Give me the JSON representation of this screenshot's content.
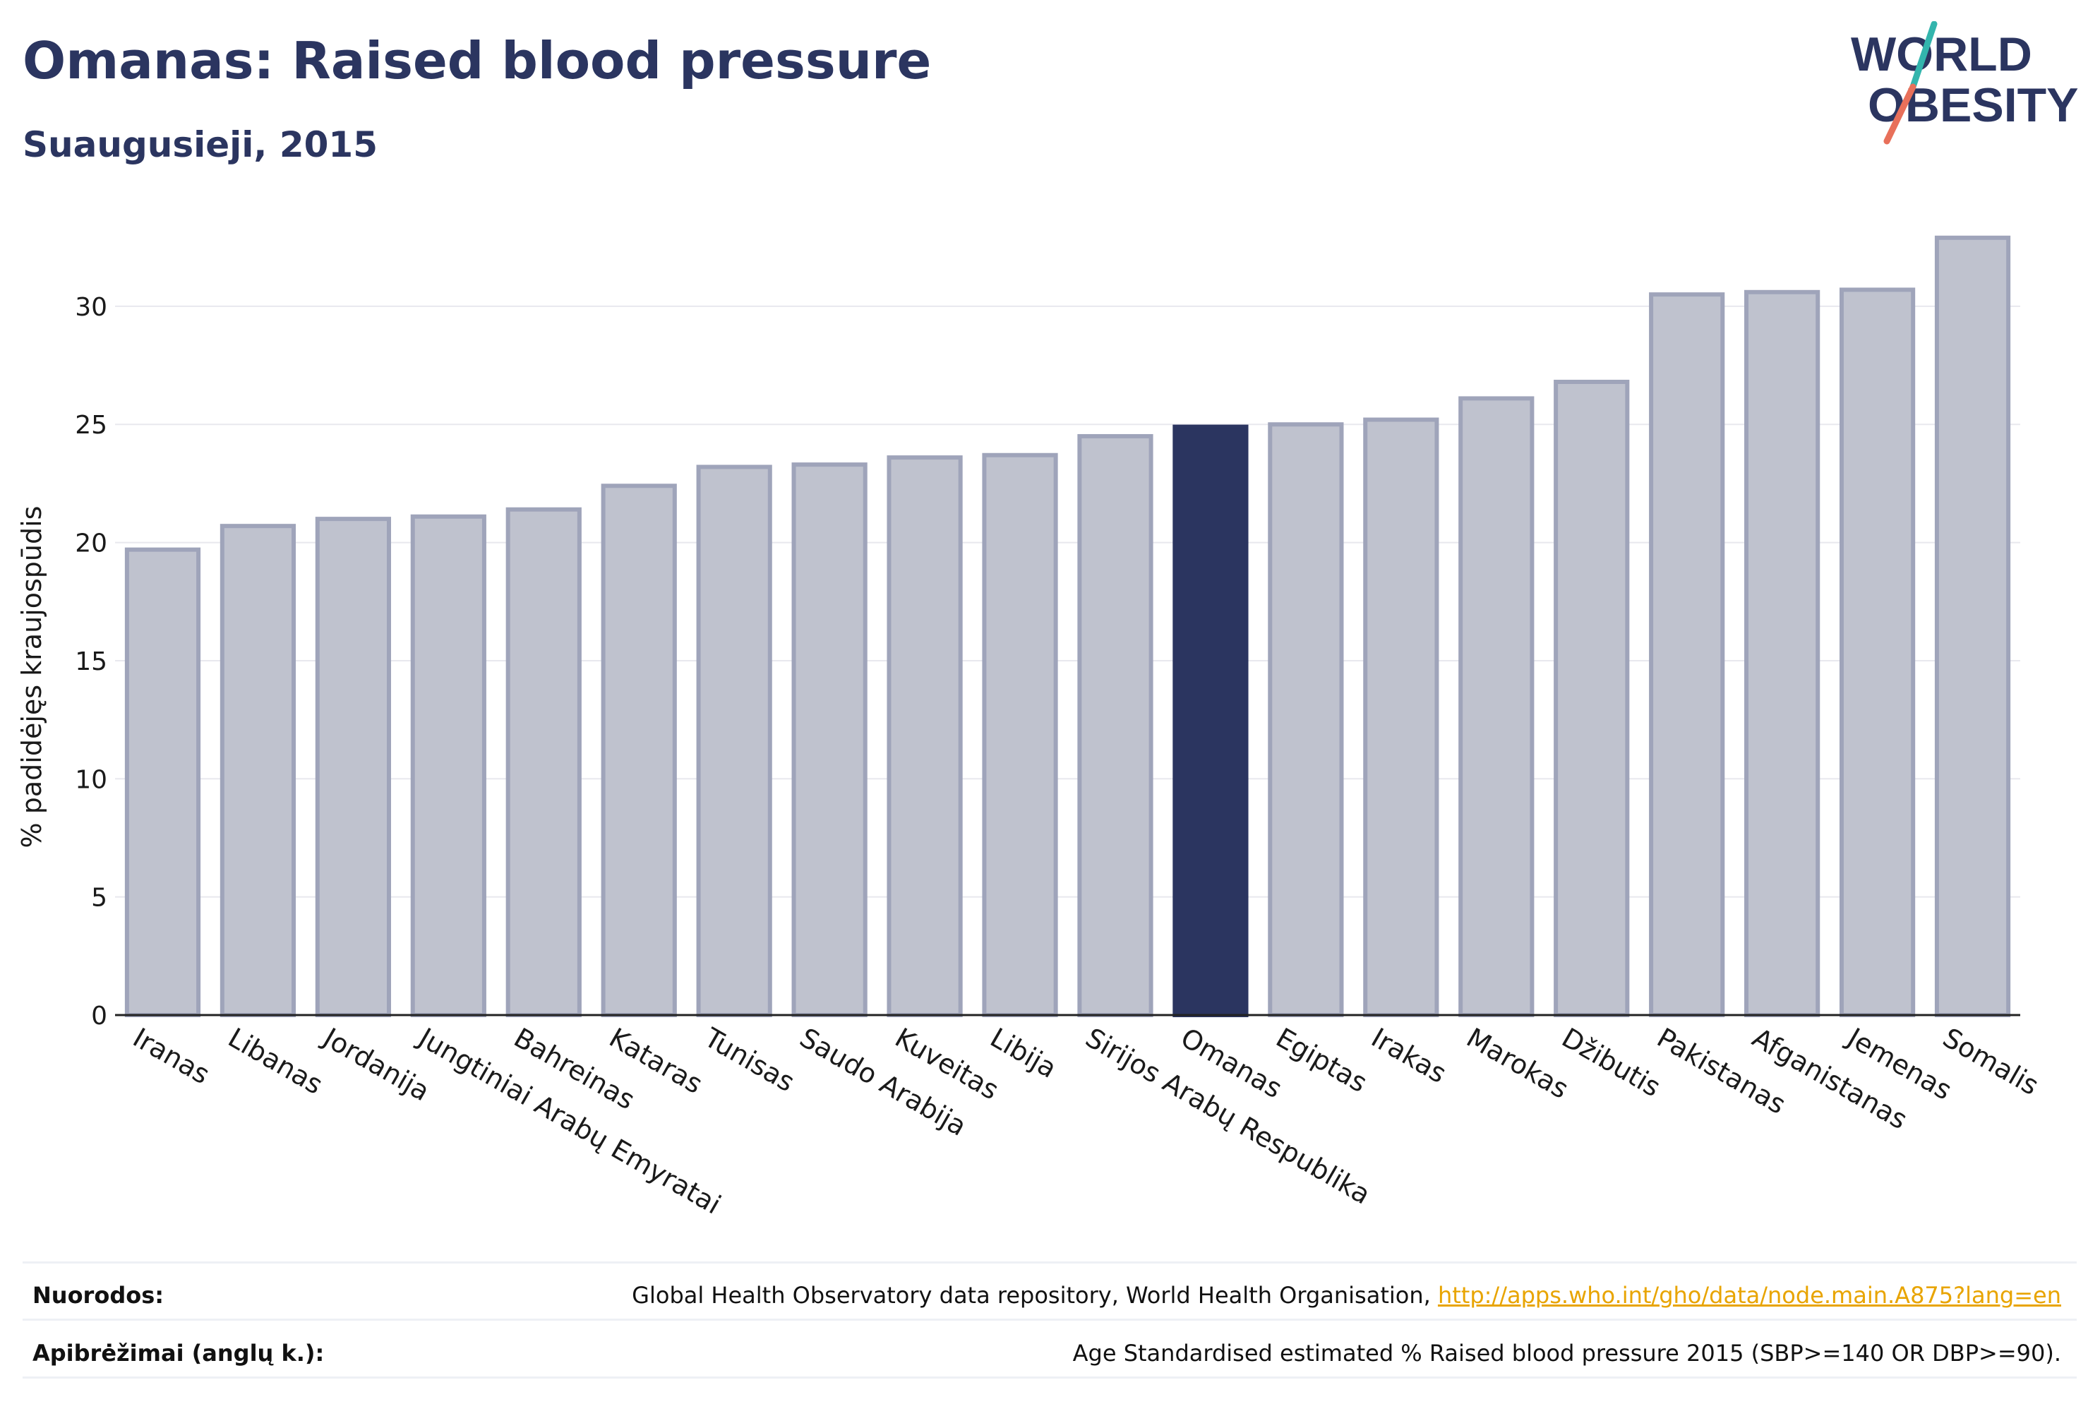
{
  "header": {
    "title": "Omanas: Raised blood pressure",
    "subtitle": "Suaugusieji, 2015"
  },
  "logo": {
    "line1": "WORLD",
    "line2": "OBESITY"
  },
  "colors": {
    "highlight": "#2b3560",
    "bar_fill": "#bfc2ce",
    "bar_stroke": "#9fa4ba",
    "grid": "#e8e8ee",
    "title": "#2b3560",
    "link": "#e8a400"
  },
  "chart_data": {
    "type": "bar",
    "ylabel": "% padidėjęs kraujospūdis",
    "xlabel": "",
    "ylim": [
      0,
      34
    ],
    "yticks": [
      0,
      5,
      10,
      15,
      20,
      25,
      30
    ],
    "grid": true,
    "highlight": "Omanas",
    "categories": [
      "Iranas",
      "Libanas",
      "Jordanija",
      "Jungtiniai Arabų Emyratai",
      "Bahreinas",
      "Kataras",
      "Tunisas",
      "Saudo Arabija",
      "Kuveitas",
      "Libija",
      "Sirijos Arabų Respublika",
      "Omanas",
      "Egiptas",
      "Irakas",
      "Marokas",
      "Džibutis",
      "Pakistanas",
      "Afganistanas",
      "Jemenas",
      "Somalis"
    ],
    "values": [
      19.7,
      20.7,
      21.0,
      21.1,
      21.4,
      22.4,
      23.2,
      23.3,
      23.6,
      23.7,
      24.5,
      24.9,
      25.0,
      25.2,
      26.1,
      26.8,
      30.5,
      30.6,
      30.7,
      32.9
    ]
  },
  "footer": {
    "references_label": "Nuorodos:",
    "references_text": "Global Health Observatory data repository, World Health Organisation, ",
    "references_link": "http://apps.who.int/gho/data/node.main.A875?lang=en",
    "definitions_label": "Apibrėžimai (anglų k.):",
    "definitions_text": "Age Standardised estimated % Raised blood pressure 2015 (SBP>=140 OR DBP>=90)."
  }
}
